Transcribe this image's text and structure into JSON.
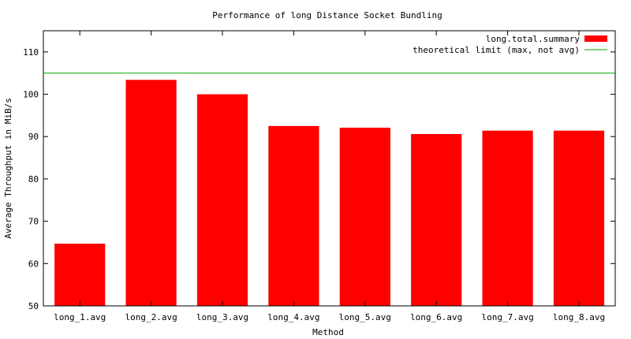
{
  "chart_data": {
    "type": "bar",
    "title": "Performance of long Distance Socket Bundling",
    "xlabel": "Method",
    "ylabel": "Average Throughput in MiB/s",
    "categories": [
      "long_1.avg",
      "long_2.avg",
      "long_3.avg",
      "long_4.avg",
      "long_5.avg",
      "long_6.avg",
      "long_7.avg",
      "long_8.avg"
    ],
    "series": [
      {
        "name": "long.total.summary",
        "color": "#ff0000",
        "values": [
          64.7,
          103.4,
          100.0,
          92.5,
          92.1,
          90.6,
          91.4,
          91.4
        ]
      }
    ],
    "reference_line": {
      "name": "theoretical limit (max, not avg)",
      "value": 105,
      "color": "#00aa00"
    },
    "ylim": [
      50,
      115
    ],
    "yticks": [
      50,
      60,
      70,
      80,
      90,
      100,
      110
    ],
    "grid": false,
    "legend_position": "top-right"
  }
}
